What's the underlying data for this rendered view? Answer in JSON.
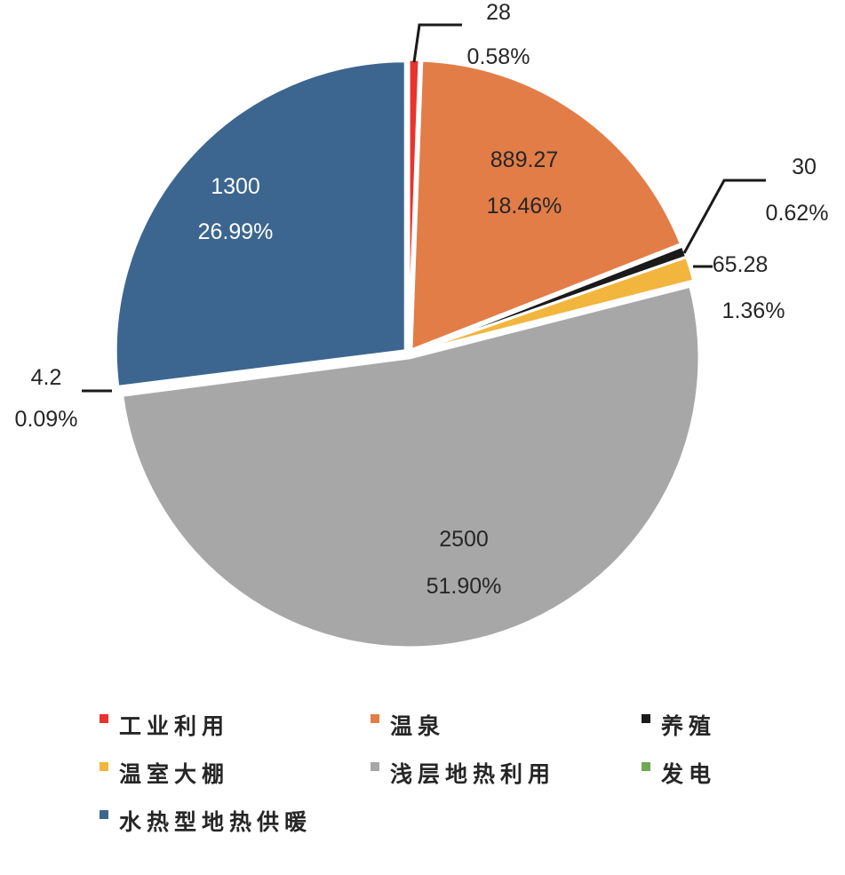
{
  "chart_data": {
    "type": "pie",
    "start": "top",
    "direction": "clockwise",
    "exploded": true,
    "legend_position": "bottom",
    "slices": [
      {
        "label": "工业利用",
        "value": 28,
        "percent": "0.58%",
        "value_text": "28",
        "color": "#E8332E"
      },
      {
        "label": "温泉",
        "value": 889.27,
        "percent": "18.46%",
        "value_text": "889.27",
        "color": "#E27D48"
      },
      {
        "label": "养殖",
        "value": 30,
        "percent": "0.62%",
        "value_text": "30",
        "color": "#1A1A1A"
      },
      {
        "label": "温室大棚",
        "value": 65.28,
        "percent": "1.36%",
        "value_text": "65.28",
        "color": "#F2B53D"
      },
      {
        "label": "浅层地热利用",
        "value": 2500,
        "percent": "51.90%",
        "value_text": "2500",
        "color": "#A8A7A8"
      },
      {
        "label": "发电",
        "value": 4.2,
        "percent": "0.09%",
        "value_text": "4.2",
        "color": "#6FA857"
      },
      {
        "label": "水热型地热供暖",
        "value": 1300,
        "percent": "26.99%",
        "value_text": "1300",
        "color": "#3C668F"
      }
    ]
  }
}
